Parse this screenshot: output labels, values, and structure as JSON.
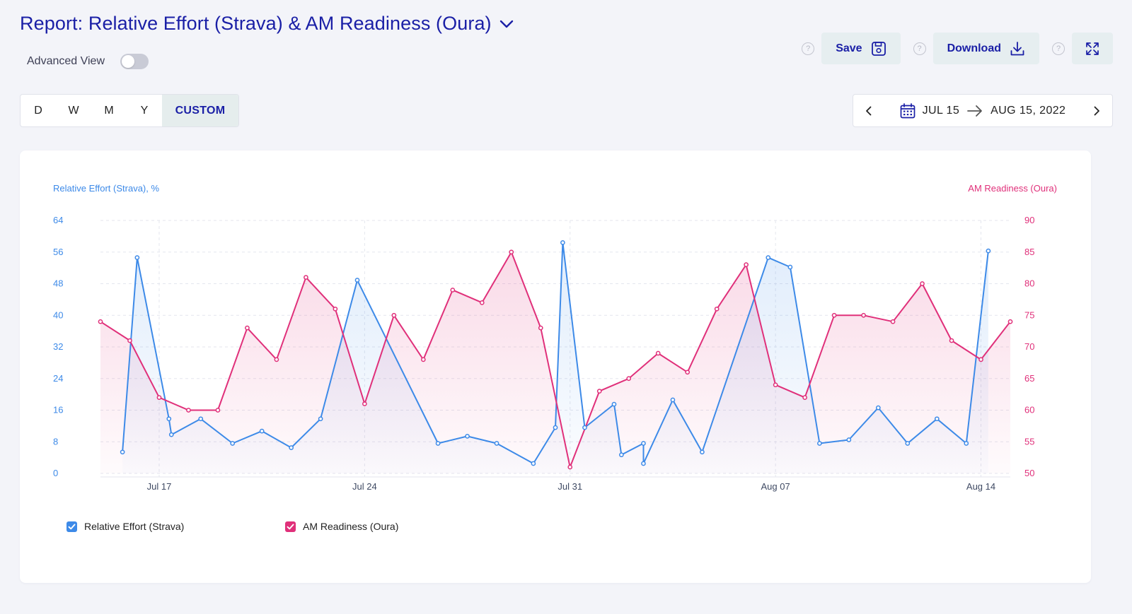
{
  "header": {
    "title": "Report: Relative Effort (Strava) & AM Readiness (Oura)",
    "advanced_view_label": "Advanced View",
    "advanced_view_on": false
  },
  "actions": {
    "help_glyph": "?",
    "save_label": "Save",
    "download_label": "Download"
  },
  "periods": {
    "items": [
      "D",
      "W",
      "M",
      "Y",
      "CUSTOM"
    ],
    "active": "CUSTOM"
  },
  "date_range": {
    "start": "JUL 15",
    "end": "AUG 15, 2022"
  },
  "colors": {
    "accent": "#1a1fa6",
    "effort": "#3d8ae8",
    "readiness": "#e0307a"
  },
  "icons": {
    "title_dropdown": "chevron-down-icon",
    "save": "save-icon",
    "download": "download-icon",
    "expand": "expand-icon",
    "calendar": "calendar-icon",
    "prev": "chevron-left-icon",
    "next": "chevron-right-icon",
    "range_arrow": "arrow-right-icon"
  },
  "chart_data": {
    "type": "line",
    "left_axis_title": "Relative Effort (Strava), %",
    "right_axis_title": "AM Readiness (Oura)",
    "ylim_left": [
      0,
      64
    ],
    "ylim_right": [
      50,
      90
    ],
    "y_ticks_left": [
      "0",
      "8",
      "16",
      "24",
      "32",
      "40",
      "48",
      "56",
      "64"
    ],
    "y_ticks_right": [
      "50",
      "55",
      "60",
      "65",
      "70",
      "75",
      "80",
      "85",
      "90"
    ],
    "x_ticks": [
      "Jul 17",
      "Jul 24",
      "Jul 31",
      "Aug 07",
      "Aug 14"
    ],
    "xlim": [
      "2022-07-15",
      "2022-08-15"
    ],
    "grid": true,
    "series": [
      {
        "name": "Relative Effort (Strava)",
        "axis": "left",
        "color": "#3d8ae8",
        "points": [
          [
            "2022-07-15 18:00",
            5.4
          ],
          [
            "2022-07-16 06:00",
            54.6
          ],
          [
            "2022-07-17 08:00",
            13.8
          ],
          [
            "2022-07-17 10:00",
            9.8
          ],
          [
            "2022-07-18 10:00",
            13.8
          ],
          [
            "2022-07-19 12:00",
            7.6
          ],
          [
            "2022-07-20 12:00",
            10.7
          ],
          [
            "2022-07-21 12:00",
            6.5
          ],
          [
            "2022-07-22 12:00",
            13.8
          ],
          [
            "2022-07-23 18:00",
            48.9
          ],
          [
            "2022-07-26 12:00",
            7.6
          ],
          [
            "2022-07-27 12:00",
            9.4
          ],
          [
            "2022-07-28 12:00",
            7.6
          ],
          [
            "2022-07-29 18:00",
            2.5
          ],
          [
            "2022-07-30 12:00",
            11.6
          ],
          [
            "2022-07-30 18:00",
            58.4
          ],
          [
            "2022-07-31 12:00",
            11.6
          ],
          [
            "2022-08-01 12:00",
            17.5
          ],
          [
            "2022-08-01 18:00",
            4.7
          ],
          [
            "2022-08-02 12:00",
            7.6
          ],
          [
            "2022-08-02 12:00",
            2.5
          ],
          [
            "2022-08-03 12:00",
            18.6
          ],
          [
            "2022-08-04 12:00",
            5.4
          ],
          [
            "2022-08-06 18:00",
            54.6
          ],
          [
            "2022-08-07 12:00",
            52.2
          ],
          [
            "2022-08-08 12:00",
            7.6
          ],
          [
            "2022-08-09 12:00",
            8.5
          ],
          [
            "2022-08-10 12:00",
            16.6
          ],
          [
            "2022-08-11 12:00",
            7.6
          ],
          [
            "2022-08-12 12:00",
            13.8
          ],
          [
            "2022-08-13 12:00",
            7.6
          ],
          [
            "2022-08-14 06:00",
            56.3
          ]
        ]
      },
      {
        "name": "AM Readiness (Oura)",
        "axis": "right",
        "color": "#e0307a",
        "points": [
          [
            "2022-07-15",
            74
          ],
          [
            "2022-07-16",
            71
          ],
          [
            "2022-07-17",
            62
          ],
          [
            "2022-07-18",
            60
          ],
          [
            "2022-07-19",
            60
          ],
          [
            "2022-07-20",
            73
          ],
          [
            "2022-07-21",
            68
          ],
          [
            "2022-07-22",
            81
          ],
          [
            "2022-07-23",
            76
          ],
          [
            "2022-07-24",
            61
          ],
          [
            "2022-07-25",
            75
          ],
          [
            "2022-07-26",
            68
          ],
          [
            "2022-07-27",
            79
          ],
          [
            "2022-07-28",
            77
          ],
          [
            "2022-07-29",
            85
          ],
          [
            "2022-07-30",
            73
          ],
          [
            "2022-07-31",
            51
          ],
          [
            "2022-08-01",
            63
          ],
          [
            "2022-08-02",
            65
          ],
          [
            "2022-08-03",
            69
          ],
          [
            "2022-08-04",
            66
          ],
          [
            "2022-08-05",
            76
          ],
          [
            "2022-08-06",
            83
          ],
          [
            "2022-08-07",
            64
          ],
          [
            "2022-08-08",
            62
          ],
          [
            "2022-08-09",
            75
          ],
          [
            "2022-08-10",
            75
          ],
          [
            "2022-08-11",
            74
          ],
          [
            "2022-08-12",
            80
          ],
          [
            "2022-08-13",
            71
          ],
          [
            "2022-08-14",
            68
          ],
          [
            "2022-08-15",
            74
          ]
        ]
      }
    ],
    "legend": [
      {
        "label": "Relative Effort (Strava)",
        "checked": true,
        "color": "#3d8ae8"
      },
      {
        "label": "AM Readiness (Oura)",
        "checked": true,
        "color": "#e0307a"
      }
    ],
    "legend_position": "bottom-left"
  }
}
